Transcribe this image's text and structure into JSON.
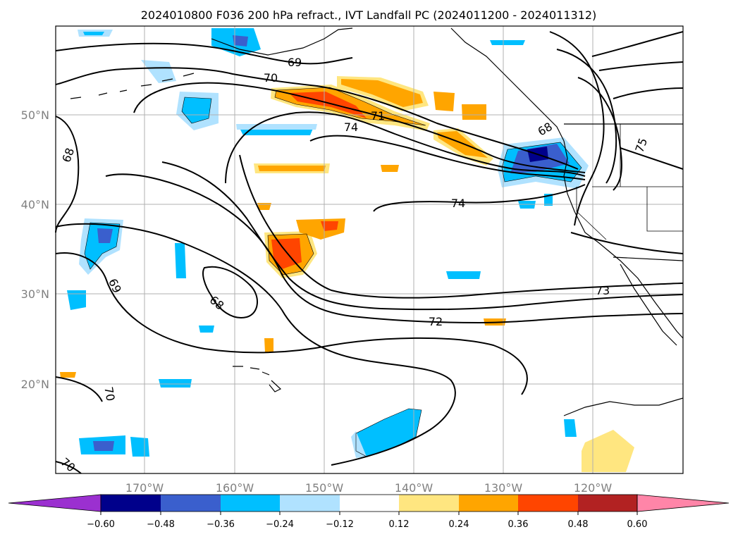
{
  "title": "2024010800 F036 200 hPa refract., IVT Landfall PC (2024011200 - 2024011312)",
  "map": {
    "lon_ticks": [
      "170°W",
      "160°W",
      "150°W",
      "140°W",
      "130°W",
      "120°W"
    ],
    "lat_ticks": [
      "50°N",
      "40°N",
      "30°N",
      "20°N"
    ],
    "lon_range": [
      -180,
      -110
    ],
    "lat_range": [
      10,
      60
    ],
    "gridlines": true
  },
  "contour_labels": [
    "69",
    "70",
    "71",
    "74",
    "68",
    "74",
    "69",
    "68",
    "72",
    "73",
    "70",
    "70",
    "75",
    "68"
  ],
  "colorbar": {
    "ticks": [
      "−0.60",
      "−0.48",
      "−0.36",
      "−0.24",
      "−0.12",
      "0.12",
      "0.24",
      "0.36",
      "0.48",
      "0.60"
    ],
    "colors": [
      "#9b30d0",
      "#00008b",
      "#3a5fcd",
      "#00bfff",
      "#b0e2ff",
      "#ffffff",
      "#ffe680",
      "#ffa500",
      "#ff4500",
      "#b22222",
      "#ff85a8"
    ],
    "extend": "both"
  },
  "colors": {
    "neg_strong": "#00008b",
    "neg_mid": "#3a5fcd",
    "neg": "#00bfff",
    "neg_weak": "#b0e2ff",
    "pos_weak": "#ffe680",
    "pos": "#ffa500",
    "pos_mid": "#ff4500"
  }
}
